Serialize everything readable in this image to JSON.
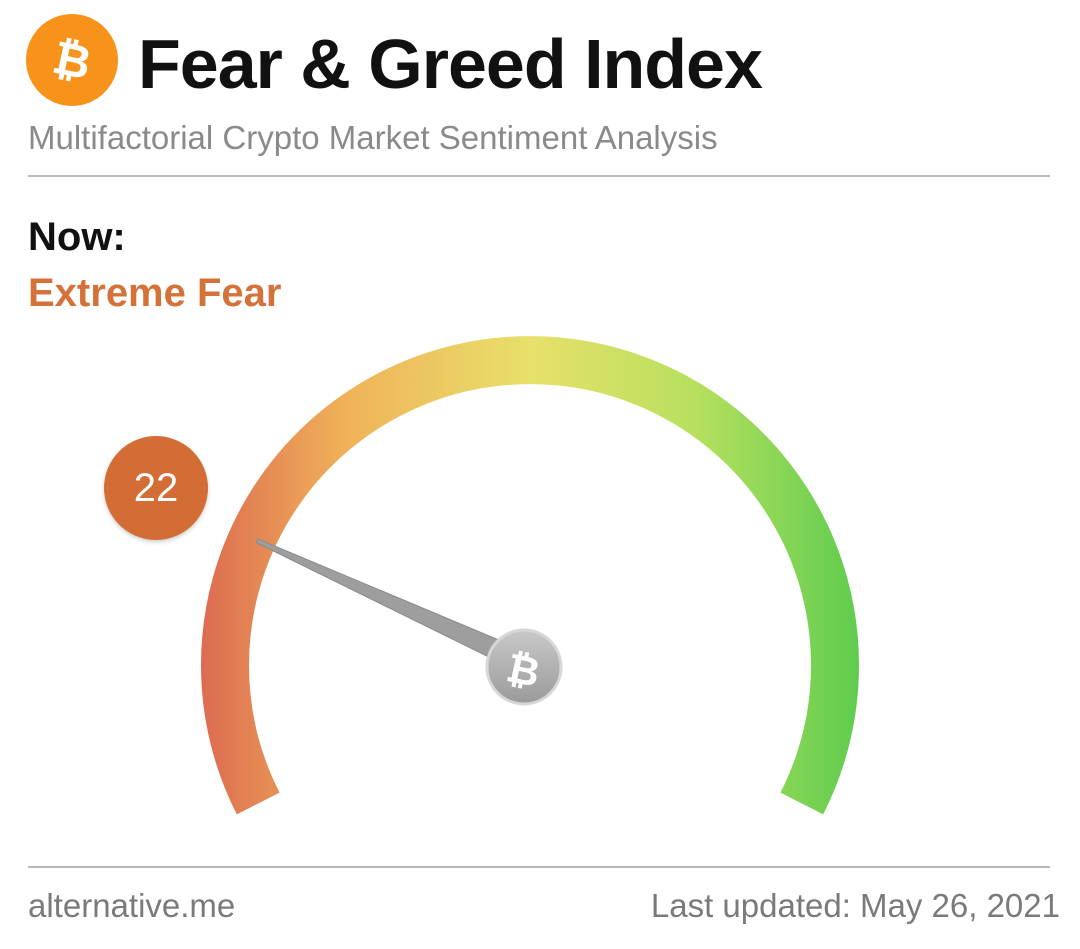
{
  "header": {
    "title": "Fear & Greed Index",
    "subtitle": "Multifactorial Crypto Market Sentiment Analysis",
    "logo_icon": "bitcoin-icon",
    "logo_color": "#f7931a"
  },
  "current": {
    "label": "Now:",
    "status": "Extreme Fear",
    "value": "22",
    "status_color": "#d5723a",
    "badge_color": "#d36d35"
  },
  "gauge": {
    "min": 0,
    "max": 100,
    "value": 22,
    "gradient_colors": [
      "#dc6b51",
      "#f0b259",
      "#e8e06a",
      "#b7e05e",
      "#5ecc4e"
    ],
    "hub_icon": "bitcoin-icon"
  },
  "footer": {
    "source": "alternative.me",
    "updated": "Last updated: May 26, 2021"
  }
}
